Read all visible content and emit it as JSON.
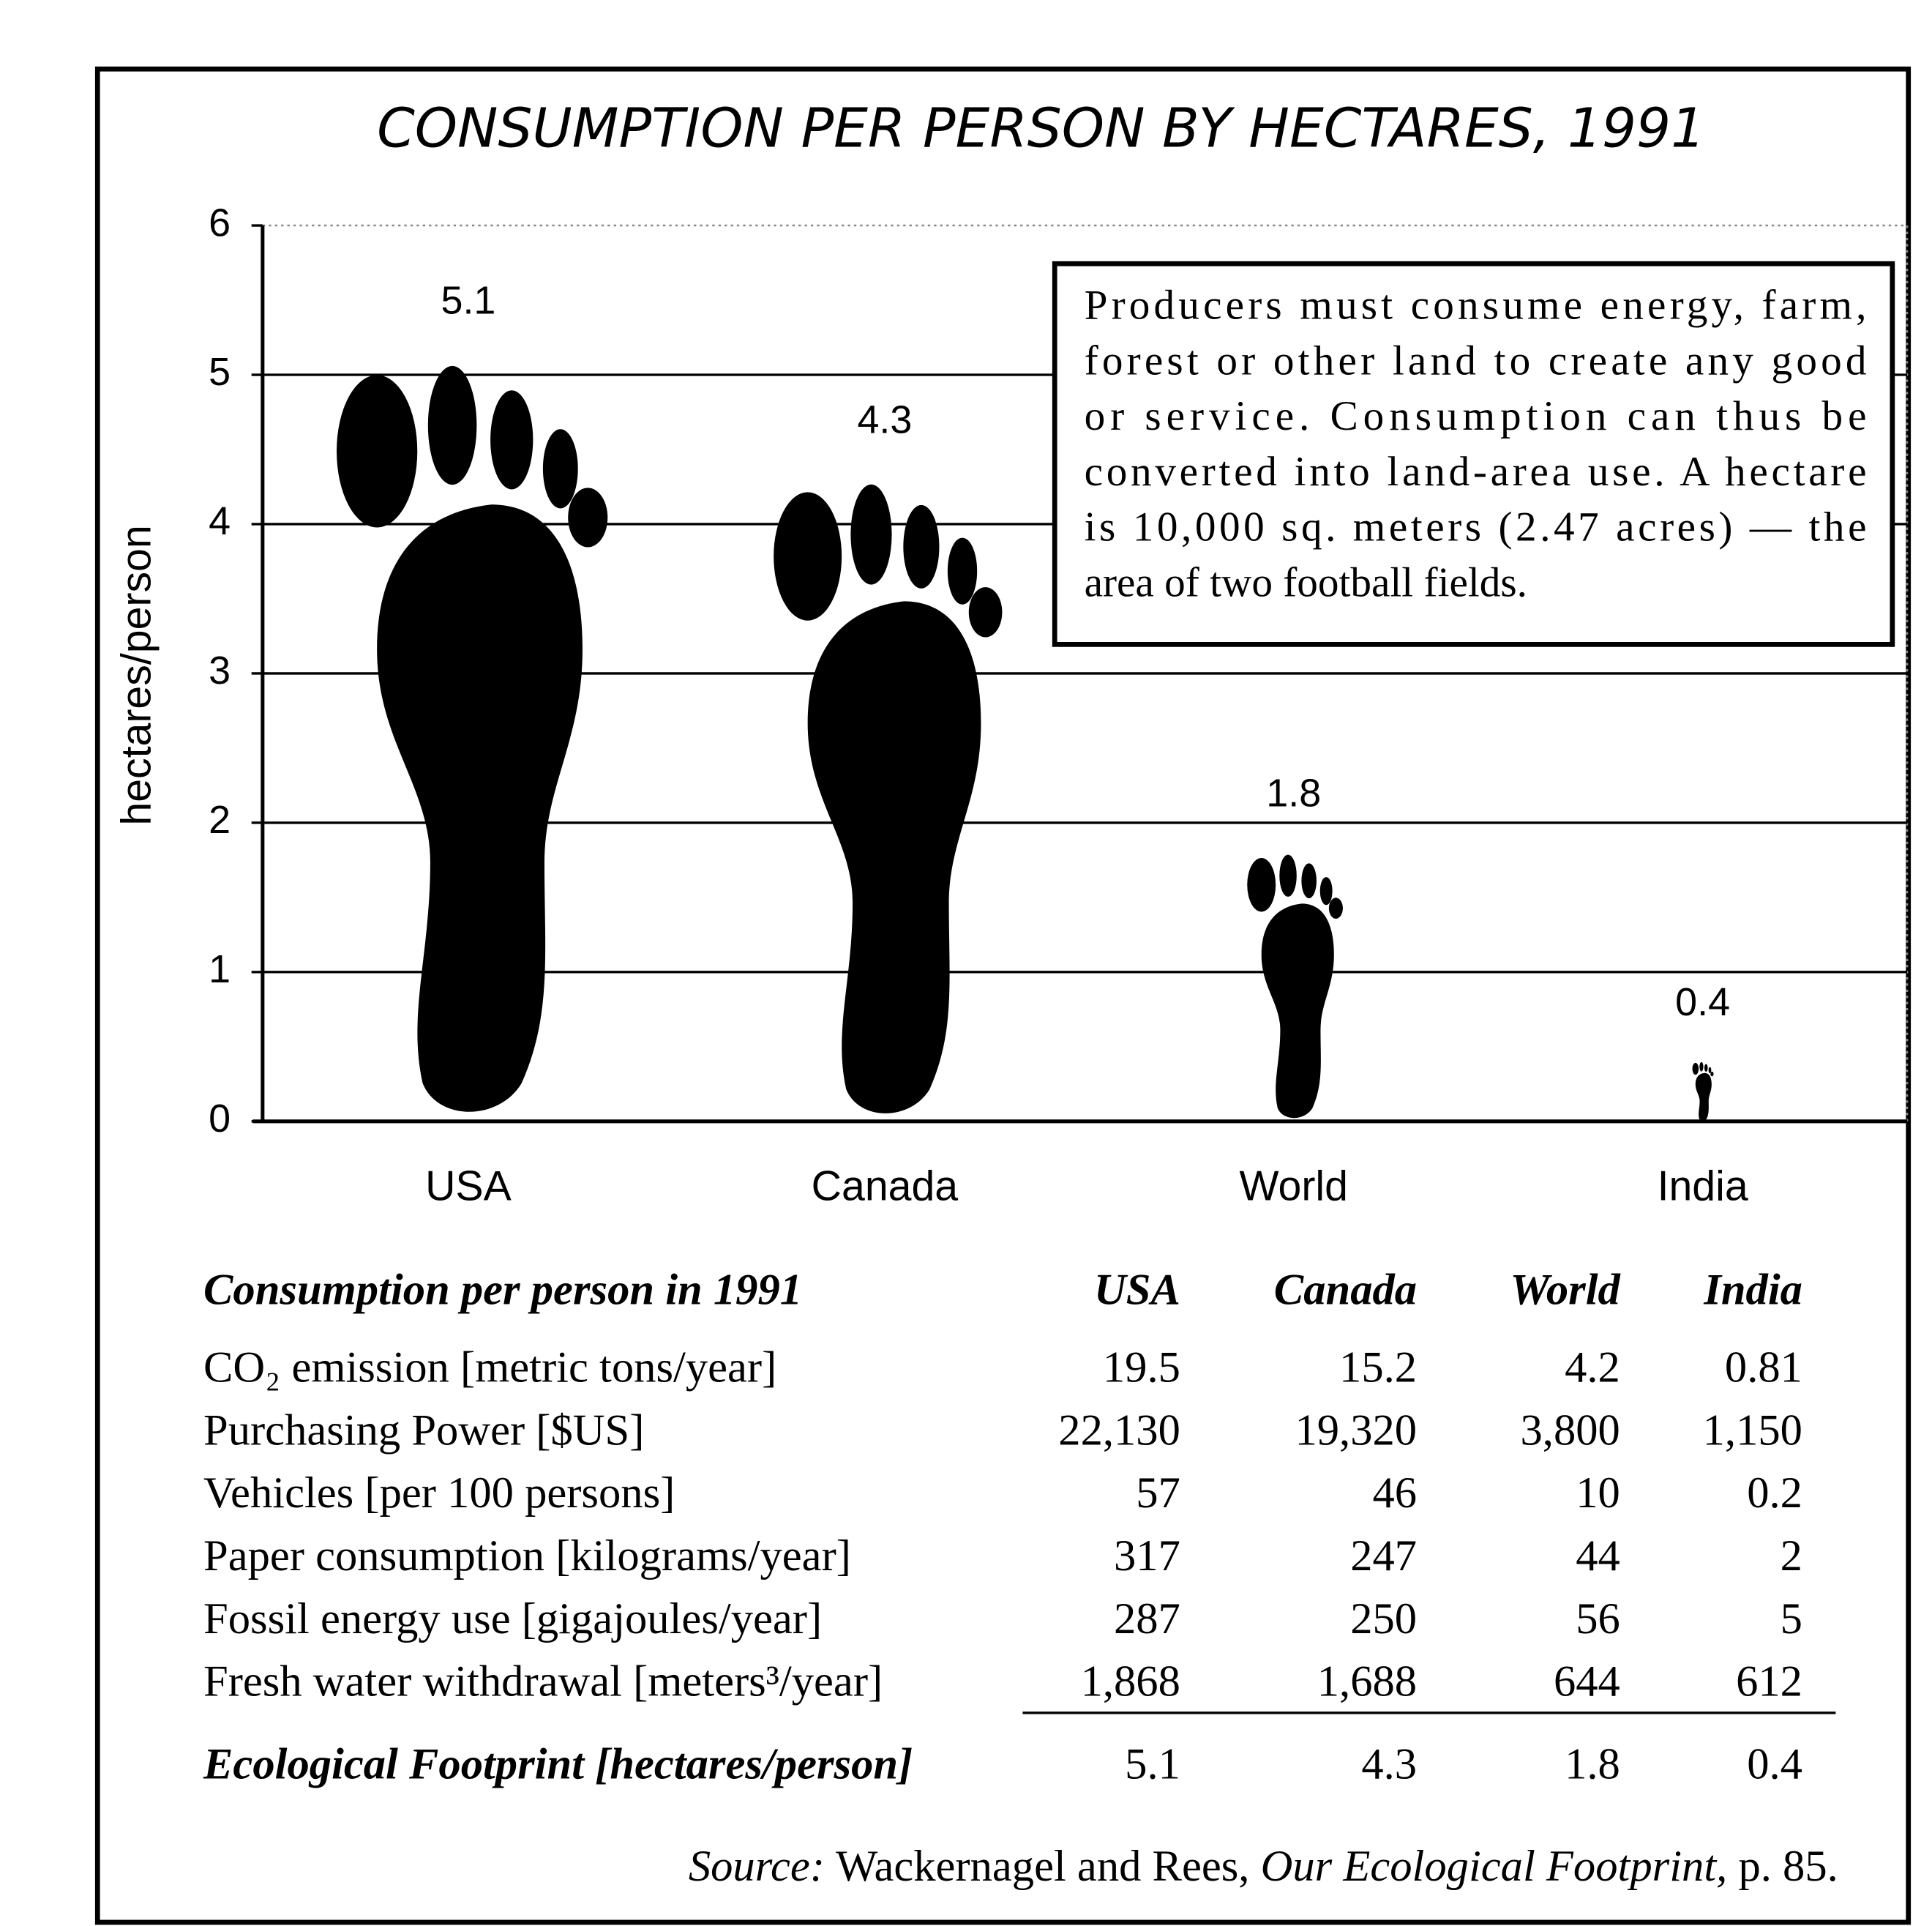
{
  "chart_data": {
    "type": "footprint",
    "title": "CONSUMPTION PER PERSON BY HECTARES, 1991",
    "y_label": "hectares/person",
    "categories": [
      "USA",
      "Canada",
      "World",
      "India"
    ],
    "values": [
      5.1,
      4.3,
      1.8,
      0.4
    ],
    "color": "#000000",
    "ylim": [
      0,
      6
    ],
    "yticks": [
      0,
      1,
      2,
      3,
      4,
      5,
      6
    ],
    "grid": true,
    "annotation": [
      "Producers must consume energy, farm,",
      "forest or other land to create any good",
      "or service. Consumption can thus be",
      "converted into land-area use. A hectare",
      "is 10,000 sq. meters (2.47 acres) — the",
      "area of two football fields."
    ]
  },
  "table": {
    "header": [
      "Consumption per person in 1991",
      "USA",
      "Canada",
      "World",
      "India"
    ],
    "rows": [
      [
        "CO₂ emission [metric tons/year]",
        "19.5",
        "15.2",
        "4.2",
        "0.81"
      ],
      [
        "Purchasing Power [$US]",
        "22,130",
        "19,320",
        "3,800",
        "1,150"
      ],
      [
        "Vehicles [per 100 persons]",
        "57",
        "46",
        "10",
        "0.2"
      ],
      [
        "Paper consumption [kilograms/year]",
        "317",
        "247",
        "44",
        "2"
      ],
      [
        "Fossil energy use [gigajoules/year]",
        "287",
        "250",
        "56",
        "5"
      ],
      [
        "Fresh water withdrawal [meters³/year]",
        "1,868",
        "1,688",
        "644",
        "612"
      ]
    ],
    "footer": [
      "Ecological Footprint [hectares/person]",
      "5.1",
      "4.3",
      "1.8",
      "0.4"
    ]
  },
  "source": [
    "Source:",
    "Wackernagel and Rees,",
    "Our Ecological Footprint,",
    "p. 85."
  ]
}
